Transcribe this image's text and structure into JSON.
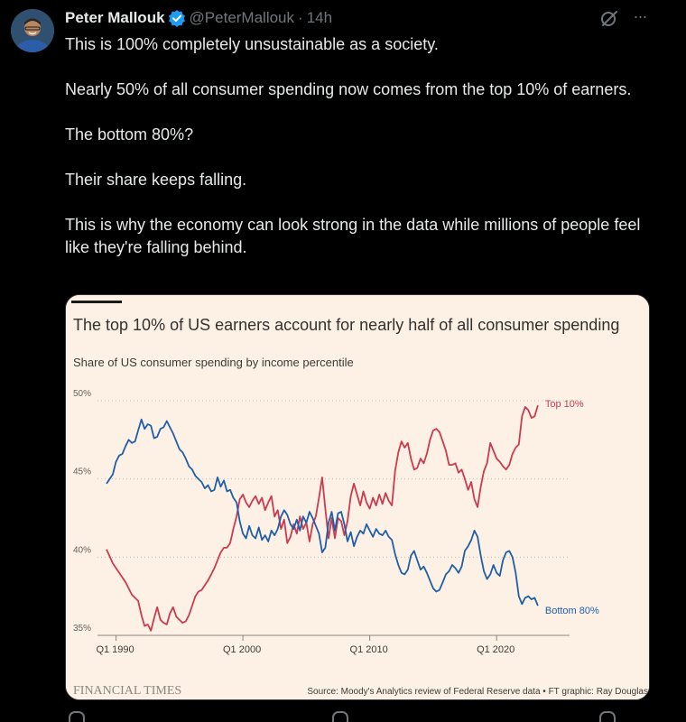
{
  "post": {
    "author_name": "Peter Mallouk",
    "handle": "@PeterMallouk",
    "separator": "·",
    "timestamp": "14h",
    "paragraphs": [
      "This is 100% completely unsustainable as a society.",
      "Nearly 50% of all consumer spending now comes from the top 10% of earners.",
      "The bottom 80%?",
      "Their share keeps falling.",
      "This is why the economy can look strong in the data while millions of people feel like they're falling behind."
    ],
    "more_label": "···"
  },
  "colors": {
    "background": "#000000",
    "text": "#e7e9ea",
    "muted": "#71767b",
    "verified": "#1d9bf0",
    "chart_bg": "#fdf1e5",
    "top10": "#cc3a4f",
    "bottom80": "#1f5ea8"
  },
  "chart_data": {
    "type": "line",
    "title": "The top 10% of US earners account for nearly half of all consumer spending",
    "subtitle": "Share of US consumer spending by income percentile",
    "xlabel": "",
    "ylabel": "",
    "ylim": [
      35,
      50
    ],
    "xlim": [
      1989.25,
      2025.75
    ],
    "y_ticks": [
      {
        "value": 35,
        "label": "35%"
      },
      {
        "value": 40,
        "label": "40%"
      },
      {
        "value": 45,
        "label": "45%"
      },
      {
        "value": 50,
        "label": "50%"
      }
    ],
    "x_ticks": [
      {
        "value": 1990,
        "label": "Q1 1990"
      },
      {
        "value": 2000,
        "label": "Q1 2000"
      },
      {
        "value": 2010,
        "label": "Q1 2010"
      },
      {
        "value": 2020,
        "label": "Q1 2020"
      }
    ],
    "grid": "horizontal dotted",
    "source": "Source: Moody's Analytics review of Federal Reserve data • FT graphic: Ray Douglas",
    "brand": "FINANCIAL TIMES",
    "series": [
      {
        "name": "Top 10%",
        "color": "#cc3a4f",
        "points": [
          [
            1989.25,
            40.5
          ],
          [
            1989.75,
            39.6
          ],
          [
            1990.25,
            39.0
          ],
          [
            1990.75,
            38.4
          ],
          [
            1991.25,
            37.6
          ],
          [
            1991.75,
            37.2
          ],
          [
            1992.0,
            36.3
          ],
          [
            1992.25,
            35.6
          ],
          [
            1992.5,
            35.7
          ],
          [
            1992.75,
            35.3
          ],
          [
            1993.0,
            36.1
          ],
          [
            1993.25,
            36.8
          ],
          [
            1993.5,
            36.0
          ],
          [
            1993.75,
            35.8
          ],
          [
            1994.0,
            35.7
          ],
          [
            1994.25,
            36.4
          ],
          [
            1994.5,
            36.8
          ],
          [
            1994.75,
            36.2
          ],
          [
            1995.0,
            36.0
          ],
          [
            1995.25,
            35.8
          ],
          [
            1995.5,
            35.9
          ],
          [
            1995.75,
            36.3
          ],
          [
            1996.0,
            36.9
          ],
          [
            1996.25,
            37.5
          ],
          [
            1996.5,
            37.8
          ],
          [
            1996.75,
            37.9
          ],
          [
            1997.0,
            38.2
          ],
          [
            1997.25,
            38.5
          ],
          [
            1997.5,
            38.9
          ],
          [
            1997.75,
            39.3
          ],
          [
            1998.0,
            39.8
          ],
          [
            1998.25,
            40.3
          ],
          [
            1998.5,
            40.6
          ],
          [
            1998.75,
            40.6
          ],
          [
            1999.0,
            40.9
          ],
          [
            1999.25,
            41.8
          ],
          [
            1999.5,
            42.6
          ],
          [
            1999.75,
            43.7
          ],
          [
            2000.0,
            44.0
          ],
          [
            2000.25,
            43.5
          ],
          [
            2000.5,
            43.2
          ],
          [
            2000.75,
            43.6
          ],
          [
            2001.0,
            43.9
          ],
          [
            2001.25,
            43.4
          ],
          [
            2001.5,
            43.8
          ],
          [
            2001.75,
            43.0
          ],
          [
            2002.0,
            43.5
          ],
          [
            2002.25,
            43.9
          ],
          [
            2002.5,
            42.6
          ],
          [
            2002.75,
            43.0
          ],
          [
            2003.0,
            41.8
          ],
          [
            2003.25,
            42.4
          ],
          [
            2003.5,
            40.9
          ],
          [
            2003.75,
            41.3
          ],
          [
            2004.0,
            42.1
          ],
          [
            2004.25,
            41.5
          ],
          [
            2004.5,
            42.6
          ],
          [
            2004.75,
            41.8
          ],
          [
            2005.0,
            42.2
          ],
          [
            2005.25,
            41.0
          ],
          [
            2005.5,
            42.1
          ],
          [
            2005.75,
            42.6
          ],
          [
            2006.0,
            43.8
          ],
          [
            2006.25,
            45.1
          ],
          [
            2006.5,
            43.1
          ],
          [
            2006.75,
            41.2
          ],
          [
            2007.0,
            42.5
          ],
          [
            2007.25,
            41.2
          ],
          [
            2007.5,
            42.5
          ],
          [
            2007.75,
            42.3
          ],
          [
            2008.0,
            41.4
          ],
          [
            2008.25,
            42.3
          ],
          [
            2008.5,
            43.9
          ],
          [
            2008.75,
            44.7
          ],
          [
            2009.0,
            44.0
          ],
          [
            2009.25,
            43.3
          ],
          [
            2009.5,
            44.2
          ],
          [
            2009.75,
            43.5
          ],
          [
            2010.0,
            43.1
          ],
          [
            2010.25,
            43.8
          ],
          [
            2010.5,
            43.3
          ],
          [
            2010.75,
            44.0
          ],
          [
            2011.0,
            43.4
          ],
          [
            2011.25,
            44.1
          ],
          [
            2011.5,
            43.6
          ],
          [
            2011.75,
            43.3
          ],
          [
            2012.0,
            45.5
          ],
          [
            2012.25,
            46.7
          ],
          [
            2012.5,
            47.4
          ],
          [
            2012.75,
            47.0
          ],
          [
            2013.0,
            47.3
          ],
          [
            2013.25,
            46.3
          ],
          [
            2013.5,
            45.6
          ],
          [
            2013.75,
            45.7
          ],
          [
            2014.0,
            46.3
          ],
          [
            2014.25,
            46.0
          ],
          [
            2014.5,
            46.6
          ],
          [
            2014.75,
            47.5
          ],
          [
            2015.0,
            48.1
          ],
          [
            2015.25,
            48.2
          ],
          [
            2015.5,
            48.0
          ],
          [
            2015.75,
            47.4
          ],
          [
            2016.0,
            46.8
          ],
          [
            2016.25,
            45.9
          ],
          [
            2016.5,
            45.9
          ],
          [
            2016.75,
            46.0
          ],
          [
            2017.0,
            45.4
          ],
          [
            2017.25,
            45.6
          ],
          [
            2017.5,
            45.0
          ],
          [
            2017.75,
            44.3
          ],
          [
            2018.0,
            44.8
          ],
          [
            2018.25,
            43.7
          ],
          [
            2018.5,
            43.2
          ],
          [
            2018.75,
            44.5
          ],
          [
            2019.0,
            45.5
          ],
          [
            2019.25,
            46.0
          ],
          [
            2019.5,
            47.3
          ],
          [
            2019.75,
            46.8
          ],
          [
            2020.0,
            46.3
          ],
          [
            2020.25,
            46.1
          ],
          [
            2020.5,
            45.8
          ],
          [
            2020.75,
            45.6
          ],
          [
            2021.0,
            45.9
          ],
          [
            2021.25,
            46.6
          ],
          [
            2021.5,
            47.0
          ],
          [
            2021.75,
            47.2
          ],
          [
            2022.0,
            49.0
          ],
          [
            2022.25,
            49.6
          ],
          [
            2022.5,
            49.4
          ],
          [
            2022.75,
            48.9
          ],
          [
            2023.0,
            49.0
          ],
          [
            2023.25,
            49.7
          ]
        ]
      },
      {
        "name": "Bottom 80%",
        "color": "#1f5ea8",
        "points": [
          [
            1989.25,
            44.7
          ],
          [
            1989.5,
            45.0
          ],
          [
            1989.75,
            45.3
          ],
          [
            1990.0,
            46.1
          ],
          [
            1990.25,
            46.5
          ],
          [
            1990.5,
            46.6
          ],
          [
            1990.75,
            47.1
          ],
          [
            1991.0,
            47.5
          ],
          [
            1991.25,
            47.3
          ],
          [
            1991.5,
            47.4
          ],
          [
            1991.75,
            48.1
          ],
          [
            1992.0,
            48.8
          ],
          [
            1992.25,
            48.2
          ],
          [
            1992.5,
            48.5
          ],
          [
            1992.75,
            48.4
          ],
          [
            1993.0,
            47.6
          ],
          [
            1993.25,
            47.7
          ],
          [
            1993.5,
            48.2
          ],
          [
            1993.75,
            48.3
          ],
          [
            1994.0,
            48.7
          ],
          [
            1994.25,
            48.3
          ],
          [
            1994.5,
            47.9
          ],
          [
            1994.75,
            47.4
          ],
          [
            1995.0,
            46.9
          ],
          [
            1995.25,
            46.7
          ],
          [
            1995.5,
            46.3
          ],
          [
            1995.75,
            45.8
          ],
          [
            1996.0,
            45.6
          ],
          [
            1996.25,
            45.2
          ],
          [
            1996.5,
            45.0
          ],
          [
            1996.75,
            44.8
          ],
          [
            1997.0,
            44.4
          ],
          [
            1997.25,
            44.6
          ],
          [
            1997.5,
            44.2
          ],
          [
            1997.75,
            44.3
          ],
          [
            1998.0,
            45.1
          ],
          [
            1998.25,
            44.5
          ],
          [
            1998.5,
            44.9
          ],
          [
            1998.75,
            44.2
          ],
          [
            1999.0,
            44.3
          ],
          [
            1999.25,
            43.8
          ],
          [
            1999.5,
            43.5
          ],
          [
            1999.75,
            42.3
          ],
          [
            2000.0,
            41.5
          ],
          [
            2000.25,
            41.2
          ],
          [
            2000.5,
            42.0
          ],
          [
            2000.75,
            41.4
          ],
          [
            2001.0,
            41.2
          ],
          [
            2001.25,
            41.9
          ],
          [
            2001.5,
            41.1
          ],
          [
            2001.75,
            41.4
          ],
          [
            2002.0,
            41.0
          ],
          [
            2002.25,
            41.7
          ],
          [
            2002.5,
            41.4
          ],
          [
            2002.75,
            41.8
          ],
          [
            2003.0,
            42.6
          ],
          [
            2003.25,
            43.0
          ],
          [
            2003.5,
            42.7
          ],
          [
            2003.75,
            42.1
          ],
          [
            2004.0,
            41.8
          ],
          [
            2004.25,
            42.4
          ],
          [
            2004.5,
            41.7
          ],
          [
            2004.75,
            42.6
          ],
          [
            2005.0,
            42.2
          ],
          [
            2005.25,
            42.9
          ],
          [
            2005.5,
            42.5
          ],
          [
            2005.75,
            42.0
          ],
          [
            2006.0,
            41.5
          ],
          [
            2006.25,
            40.3
          ],
          [
            2006.5,
            40.6
          ],
          [
            2006.75,
            42.2
          ],
          [
            2007.0,
            42.9
          ],
          [
            2007.25,
            41.7
          ],
          [
            2007.5,
            42.8
          ],
          [
            2007.75,
            42.9
          ],
          [
            2008.0,
            42.1
          ],
          [
            2008.25,
            41.0
          ],
          [
            2008.5,
            41.6
          ],
          [
            2008.75,
            40.7
          ],
          [
            2009.0,
            41.3
          ],
          [
            2009.25,
            41.7
          ],
          [
            2009.5,
            41.5
          ],
          [
            2009.75,
            42.1
          ],
          [
            2010.0,
            41.7
          ],
          [
            2010.25,
            41.3
          ],
          [
            2010.5,
            41.8
          ],
          [
            2010.75,
            41.5
          ],
          [
            2011.0,
            41.4
          ],
          [
            2011.25,
            41.7
          ],
          [
            2011.5,
            41.3
          ],
          [
            2011.75,
            41.1
          ],
          [
            2012.0,
            40.2
          ],
          [
            2012.25,
            39.5
          ],
          [
            2012.5,
            39.0
          ],
          [
            2012.75,
            38.9
          ],
          [
            2013.0,
            39.2
          ],
          [
            2013.25,
            40.1
          ],
          [
            2013.5,
            40.4
          ],
          [
            2013.75,
            39.8
          ],
          [
            2014.0,
            39.2
          ],
          [
            2014.25,
            39.4
          ],
          [
            2014.5,
            39.0
          ],
          [
            2014.75,
            38.5
          ],
          [
            2015.0,
            38.0
          ],
          [
            2015.25,
            37.8
          ],
          [
            2015.5,
            37.9
          ],
          [
            2015.75,
            38.4
          ],
          [
            2016.0,
            38.9
          ],
          [
            2016.25,
            39.1
          ],
          [
            2016.5,
            39.5
          ],
          [
            2016.75,
            39.3
          ],
          [
            2017.0,
            39.0
          ],
          [
            2017.25,
            39.4
          ],
          [
            2017.5,
            40.4
          ],
          [
            2017.75,
            40.7
          ],
          [
            2018.0,
            41.1
          ],
          [
            2018.25,
            41.7
          ],
          [
            2018.5,
            41.3
          ],
          [
            2018.75,
            40.1
          ],
          [
            2019.0,
            39.1
          ],
          [
            2019.25,
            38.6
          ],
          [
            2019.5,
            38.9
          ],
          [
            2019.75,
            39.5
          ],
          [
            2020.0,
            39.0
          ],
          [
            2020.25,
            38.8
          ],
          [
            2020.5,
            39.8
          ],
          [
            2020.75,
            40.3
          ],
          [
            2021.0,
            40.4
          ],
          [
            2021.25,
            40.0
          ],
          [
            2021.5,
            39.0
          ],
          [
            2021.75,
            37.5
          ],
          [
            2022.0,
            37.0
          ],
          [
            2022.25,
            37.4
          ],
          [
            2022.5,
            37.5
          ],
          [
            2022.75,
            37.3
          ],
          [
            2023.0,
            37.4
          ],
          [
            2023.25,
            36.9
          ]
        ]
      }
    ]
  }
}
